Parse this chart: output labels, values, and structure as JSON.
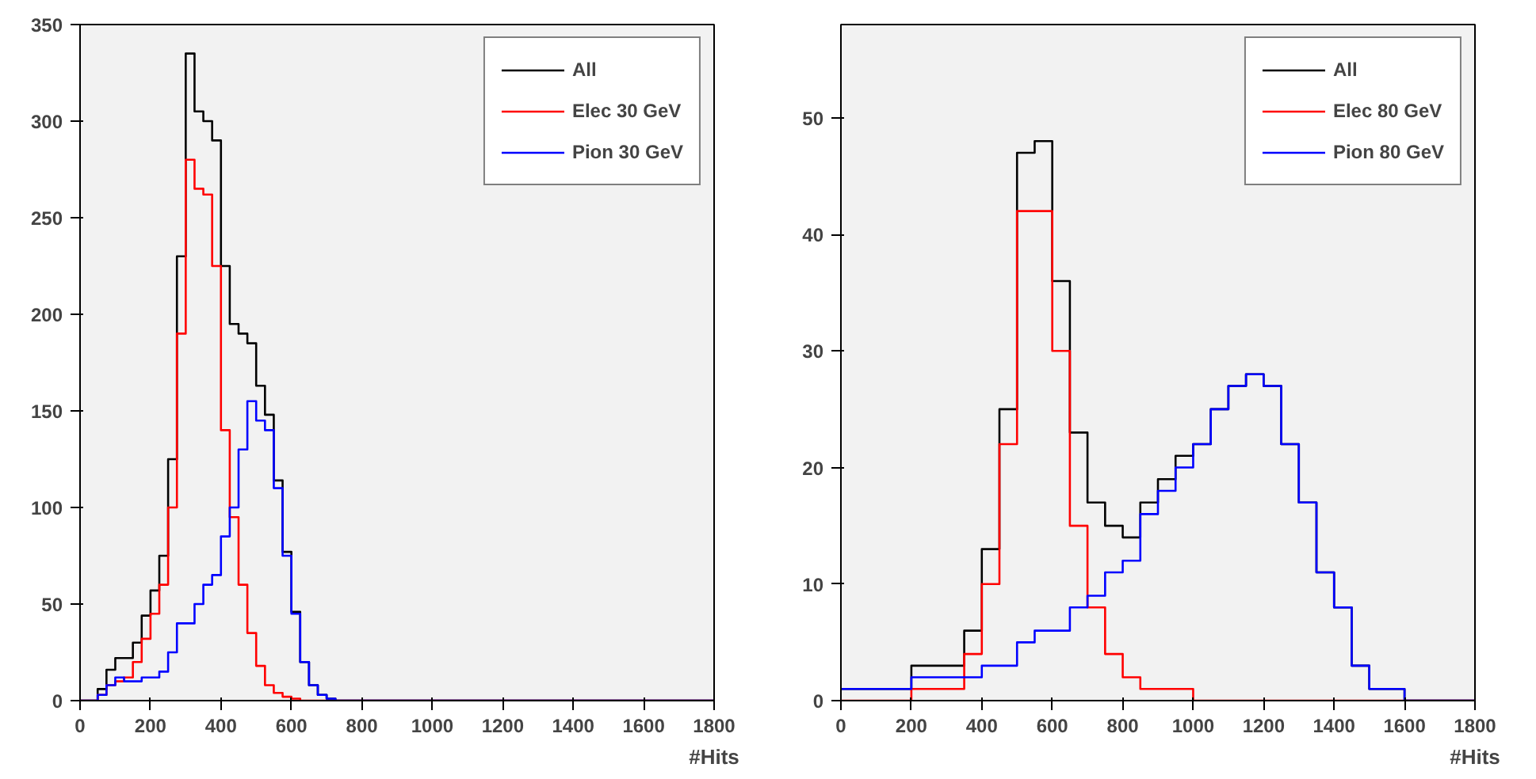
{
  "chart_data": [
    {
      "type": "histogram",
      "xlabel": "#Hits",
      "xlim": [
        0,
        1800
      ],
      "ylim": [
        0,
        350
      ],
      "xticks": [
        0,
        200,
        400,
        600,
        800,
        1000,
        1200,
        1400,
        1600,
        1800
      ],
      "yticks": [
        0,
        50,
        100,
        150,
        200,
        250,
        300,
        350
      ],
      "grid": false,
      "legend": "top right",
      "bins": [
        0,
        25,
        50,
        75,
        100,
        125,
        150,
        175,
        200,
        225,
        250,
        275,
        300,
        325,
        350,
        375,
        400,
        425,
        450,
        475,
        500,
        525,
        550,
        575,
        600,
        625,
        650,
        675,
        700,
        725,
        750,
        1800
      ],
      "series": [
        {
          "name": "All",
          "color": "#000000",
          "values": [
            0,
            0,
            6,
            16,
            22,
            22,
            30,
            44,
            57,
            75,
            125,
            230,
            335,
            305,
            300,
            290,
            225,
            195,
            190,
            185,
            163,
            148,
            114,
            77,
            46,
            20,
            8,
            3,
            1,
            0,
            0
          ]
        },
        {
          "name": "Elec 30 GeV",
          "color": "#ff0000",
          "values": [
            0,
            0,
            3,
            8,
            10,
            12,
            20,
            32,
            45,
            60,
            100,
            190,
            280,
            265,
            262,
            225,
            140,
            95,
            60,
            35,
            18,
            8,
            4,
            2,
            1,
            0,
            0,
            0,
            0,
            0,
            0
          ]
        },
        {
          "name": "Pion 30 GeV",
          "color": "#0000ff",
          "values": [
            0,
            0,
            3,
            8,
            12,
            10,
            10,
            12,
            12,
            15,
            25,
            40,
            40,
            50,
            60,
            65,
            85,
            100,
            130,
            155,
            145,
            140,
            110,
            75,
            45,
            20,
            8,
            3,
            1,
            0,
            0
          ]
        }
      ]
    },
    {
      "type": "histogram",
      "xlabel": "#Hits",
      "xlim": [
        0,
        1800
      ],
      "ylim": [
        0,
        58
      ],
      "xticks": [
        0,
        200,
        400,
        600,
        800,
        1000,
        1200,
        1400,
        1600,
        1800
      ],
      "yticks": [
        0,
        10,
        20,
        30,
        40,
        50
      ],
      "grid": false,
      "legend": "top right",
      "bins": [
        0,
        50,
        100,
        150,
        200,
        250,
        300,
        350,
        400,
        450,
        500,
        550,
        600,
        650,
        700,
        750,
        800,
        850,
        900,
        950,
        1000,
        1050,
        1100,
        1150,
        1200,
        1250,
        1300,
        1350,
        1400,
        1450,
        1500,
        1550,
        1600,
        1650,
        1700,
        1750,
        1800
      ],
      "series": [
        {
          "name": "All",
          "color": "#000000",
          "values": [
            1,
            1,
            1,
            1,
            3,
            3,
            3,
            6,
            13,
            25,
            47,
            48,
            36,
            23,
            17,
            15,
            14,
            17,
            19,
            21,
            22,
            25,
            27,
            28,
            27,
            22,
            17,
            11,
            8,
            3,
            1,
            1,
            0,
            0,
            0,
            0
          ]
        },
        {
          "name": "Elec 80 GeV",
          "color": "#ff0000",
          "values": [
            0,
            0,
            0,
            0,
            1,
            1,
            1,
            4,
            10,
            22,
            42,
            42,
            30,
            15,
            8,
            4,
            2,
            1,
            1,
            1,
            0,
            0,
            0,
            0,
            0,
            0,
            0,
            0,
            0,
            0,
            0,
            0,
            0,
            0,
            0,
            0
          ]
        },
        {
          "name": "Pion 80 GeV",
          "color": "#0000ff",
          "values": [
            1,
            1,
            1,
            1,
            2,
            2,
            2,
            2,
            3,
            3,
            5,
            6,
            6,
            8,
            9,
            11,
            12,
            16,
            18,
            20,
            22,
            25,
            27,
            28,
            27,
            22,
            17,
            11,
            8,
            3,
            1,
            1,
            0,
            0,
            0,
            0
          ]
        }
      ]
    }
  ]
}
